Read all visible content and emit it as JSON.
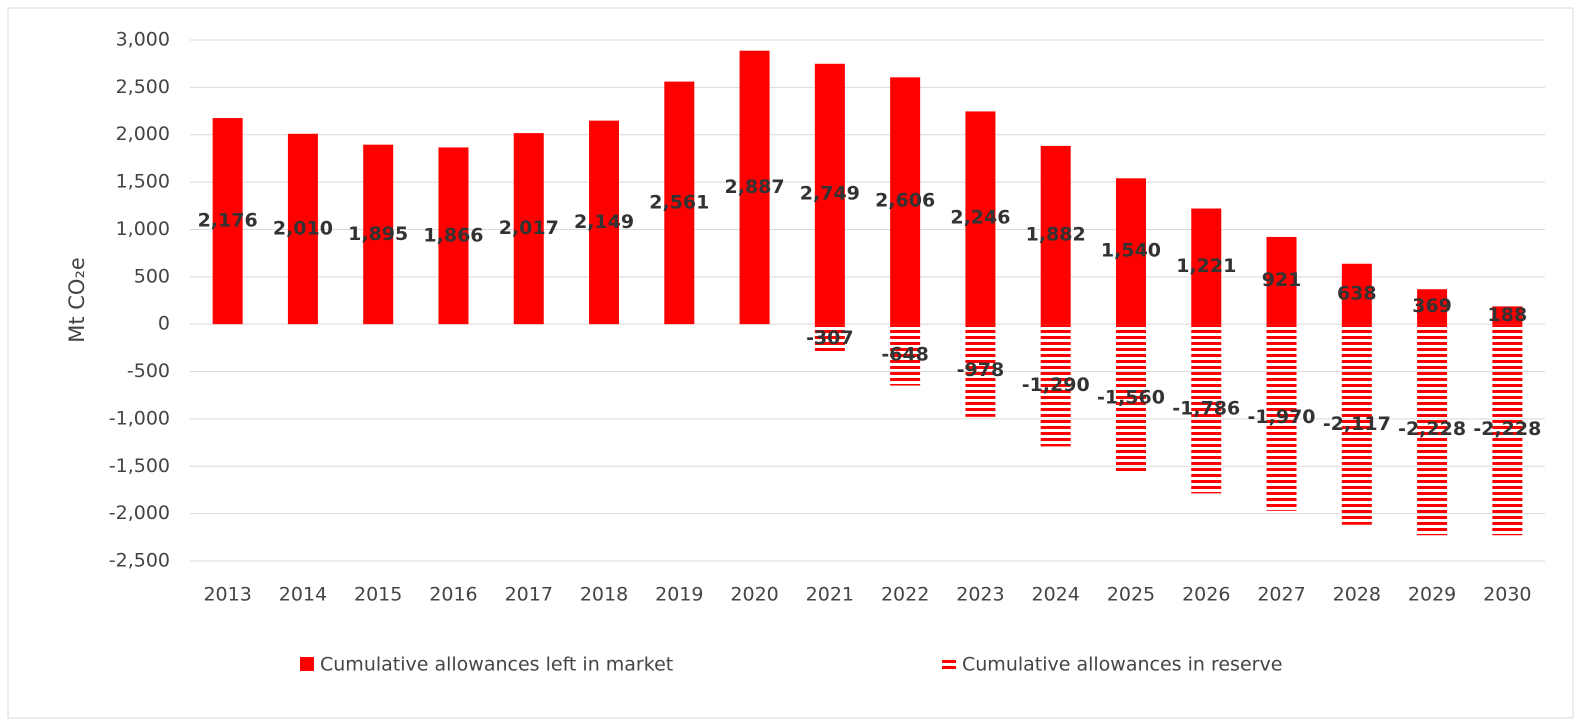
{
  "chart_data": {
    "type": "bar",
    "y_label": "Mt CO₂e",
    "categories": [
      "2013",
      "2014",
      "2015",
      "2016",
      "2017",
      "2018",
      "2019",
      "2020",
      "2021",
      "2022",
      "2023",
      "2024",
      "2025",
      "2026",
      "2027",
      "2028",
      "2029",
      "2030"
    ],
    "series": [
      {
        "name": "Cumulative allowances left in market",
        "color": "#ff0000",
        "hatch": false,
        "values": [
          2176,
          2010,
          1895,
          1866,
          2017,
          2149,
          2561,
          2887,
          2749,
          2606,
          2246,
          1882,
          1540,
          1221,
          921,
          638,
          369,
          188
        ],
        "value_labels": [
          "2,176",
          "2,010",
          "1,895",
          "1,866",
          "2,017",
          "2,149",
          "2,561",
          "2,887",
          "2,749",
          "2,606",
          "2,246",
          "1,882",
          "1,540",
          "1,221",
          "921",
          "638",
          "369",
          "188"
        ]
      },
      {
        "name": "Cumulative allowances in reserve",
        "color": "#ff0000",
        "hatch": true,
        "values": [
          null,
          null,
          null,
          null,
          null,
          null,
          null,
          null,
          -307,
          -648,
          -978,
          -1290,
          -1560,
          -1786,
          -1970,
          -2117,
          -2228,
          -2228
        ],
        "value_labels": [
          null,
          null,
          null,
          null,
          null,
          null,
          null,
          null,
          "-307",
          "-648",
          "-978",
          "-1,290",
          "-1,560",
          "-1,786",
          "-1,970",
          "-2,117",
          "-2,228",
          "-2,228"
        ]
      }
    ],
    "ylim": [
      -2500,
      3000
    ],
    "yticks": [
      {
        "value": -2500,
        "label": "-2,500"
      },
      {
        "value": -2000,
        "label": "-2,000"
      },
      {
        "value": -1500,
        "label": "-1,500"
      },
      {
        "value": -1000,
        "label": "-1,000"
      },
      {
        "value": -500,
        "label": "-500"
      },
      0,
      500,
      {
        "value": 1000,
        "label": "1,000"
      },
      {
        "value": 1500,
        "label": "1,500"
      },
      {
        "value": 2000,
        "label": "2,000"
      },
      {
        "value": 2500,
        "label": "2,500"
      },
      {
        "value": 3000,
        "label": "3,000"
      }
    ],
    "grid": true,
    "legend": "bottom"
  }
}
